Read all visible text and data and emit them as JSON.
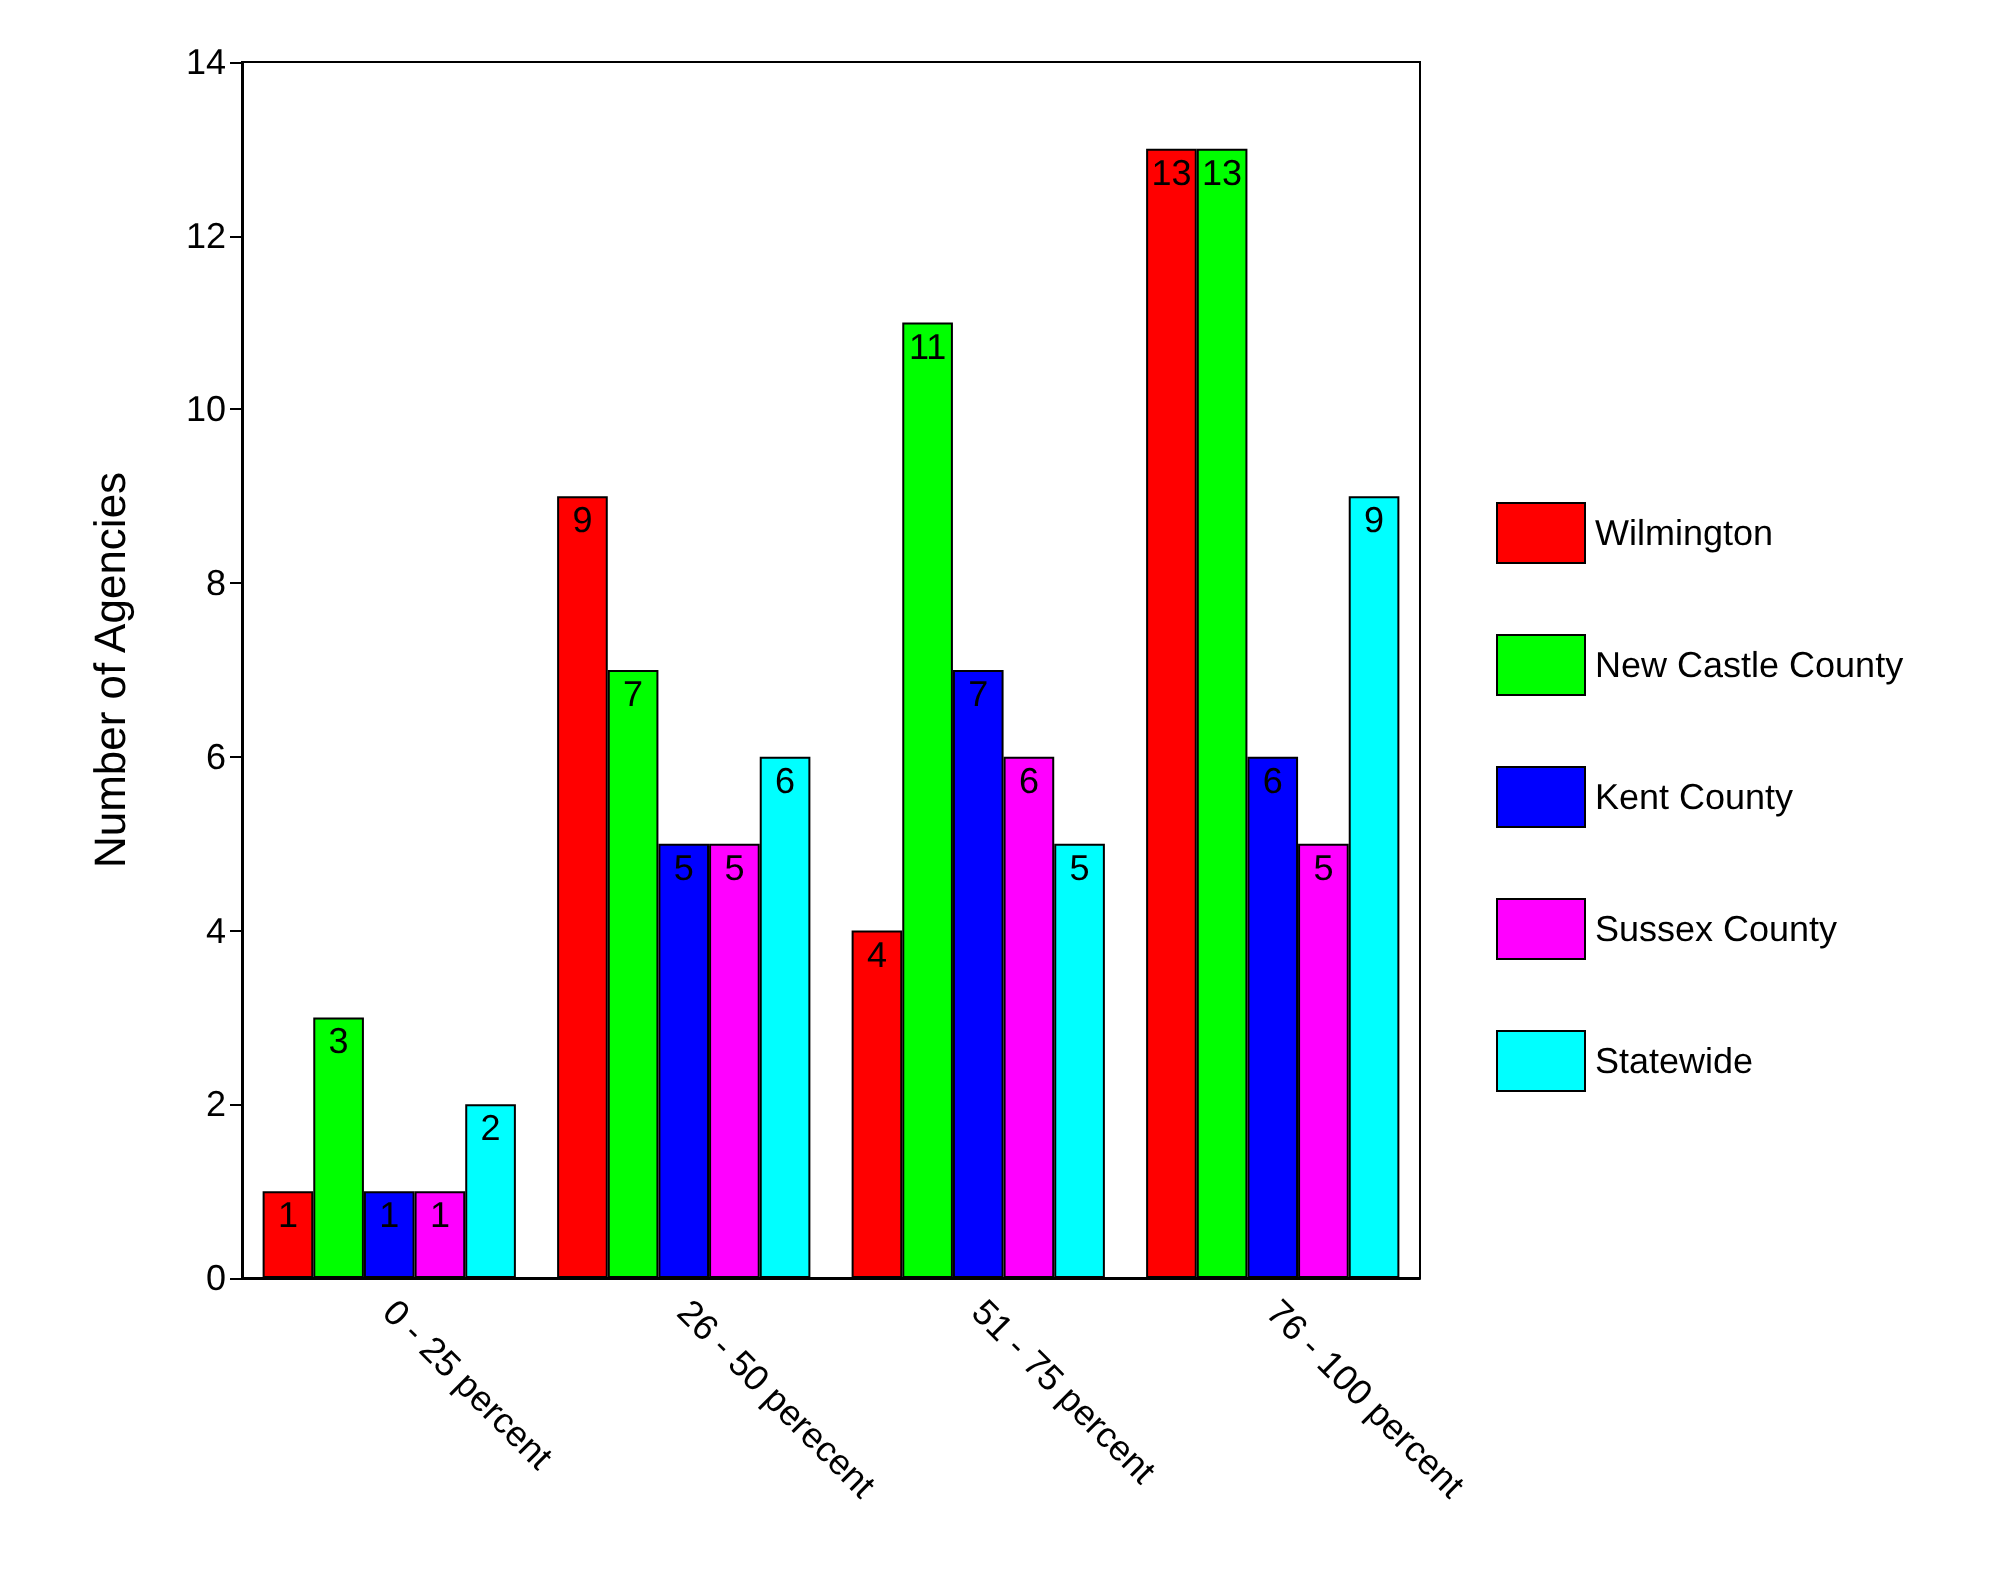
{
  "chart_data": {
    "type": "bar",
    "ylabel": "Number of Agencies",
    "categories": [
      "0 - 25 percent",
      "26 - 50 perecent",
      "51 - 75 percent",
      "76 - 100 percent"
    ],
    "series": [
      {
        "name": "Wilmington",
        "color": "#ff0000",
        "values": [
          1,
          9,
          4,
          13
        ]
      },
      {
        "name": "New Castle County",
        "color": "#00ff00",
        "values": [
          3,
          7,
          11,
          13
        ]
      },
      {
        "name": "Kent County",
        "color": "#0000ff",
        "values": [
          1,
          5,
          7,
          6
        ]
      },
      {
        "name": "Sussex County",
        "color": "#ff00ff",
        "values": [
          1,
          5,
          6,
          5
        ]
      },
      {
        "name": "Statewide",
        "color": "#00ffff",
        "values": [
          2,
          6,
          5,
          9
        ]
      }
    ],
    "ylim": [
      0,
      14
    ],
    "yticks": [
      0,
      2,
      4,
      6,
      8,
      10,
      12,
      14
    ],
    "grid": false,
    "legend": "right",
    "data_labels": true
  }
}
